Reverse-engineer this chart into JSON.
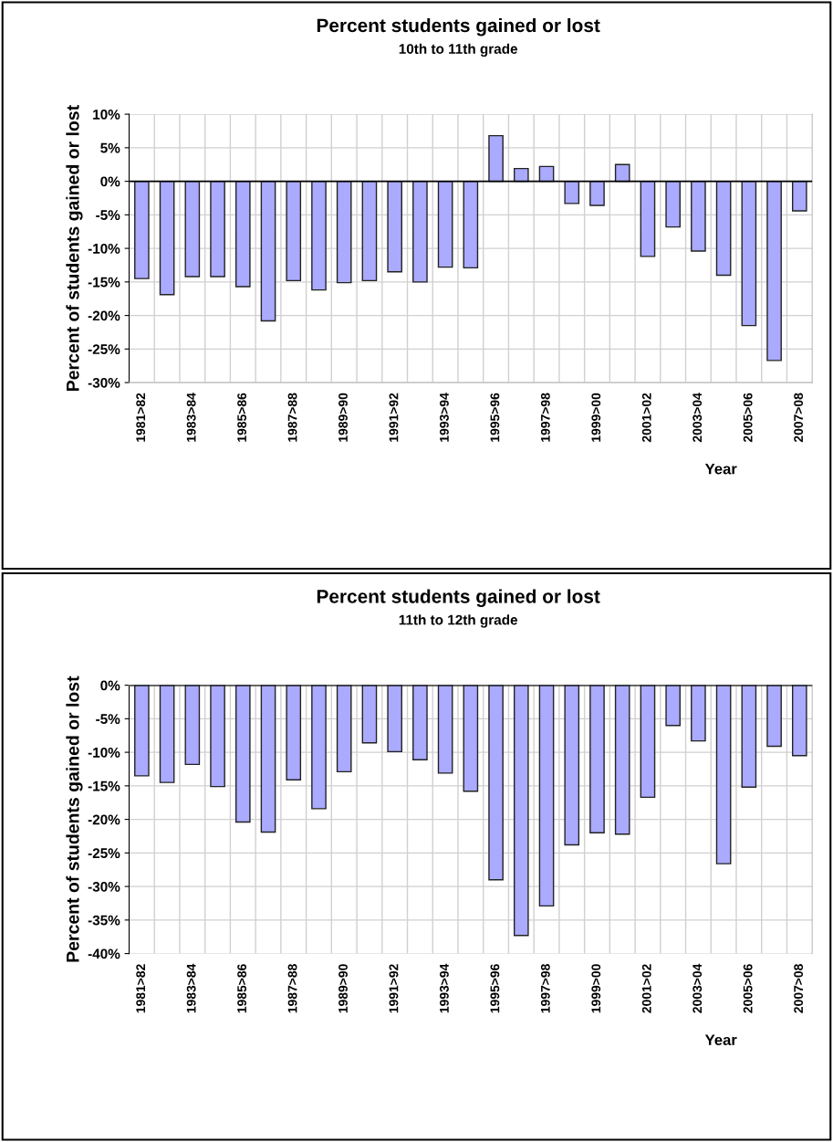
{
  "chart_data": [
    {
      "type": "bar",
      "title": "Percent students gained or lost",
      "subtitle": "10th to 11th grade",
      "xlabel": "Year",
      "ylabel": "Percent of students gained or lost",
      "categories": [
        "1981>82",
        null,
        "1983>84",
        null,
        "1985>86",
        null,
        "1987>88",
        null,
        "1989>90",
        null,
        "1991>92",
        null,
        "1993>94",
        null,
        "1995>96",
        null,
        "1997>98",
        null,
        "1999>00",
        null,
        "2001>02",
        null,
        "2003>04",
        null,
        "2005>06",
        null,
        "2007>08"
      ],
      "values": [
        -14.5,
        -16.9,
        -14.2,
        -14.2,
        -15.7,
        -20.8,
        -14.8,
        -16.2,
        -15.1,
        -14.8,
        -13.5,
        -15.0,
        -12.8,
        -12.9,
        6.8,
        1.9,
        2.2,
        -3.3,
        -3.6,
        2.5,
        -11.2,
        -6.8,
        -10.4,
        -14.0,
        -21.5,
        -26.7,
        -4.4
      ],
      "color": "#aaaaff",
      "ylim": [
        -30,
        10
      ],
      "yticks": [
        {
          "value": -30,
          "label": "-30%"
        },
        {
          "value": -25,
          "label": "-25%"
        },
        {
          "value": -20,
          "label": "-20%"
        },
        {
          "value": -15,
          "label": "-15%"
        },
        {
          "value": -10,
          "label": "-10%"
        },
        {
          "value": -5,
          "label": "-5%"
        },
        {
          "value": 0,
          "label": "0%"
        },
        {
          "value": 5,
          "label": "5%"
        },
        {
          "value": 10,
          "label": "10%"
        }
      ],
      "grid": true
    },
    {
      "type": "bar",
      "title": "Percent students gained or lost",
      "subtitle": "11th to 12th grade",
      "xlabel": "Year",
      "ylabel": "Percent of students gained or lost",
      "categories": [
        "1981>82",
        null,
        "1983>84",
        null,
        "1985>86",
        null,
        "1987>88",
        null,
        "1989>90",
        null,
        "1991>92",
        null,
        "1993>94",
        null,
        "1995>96",
        null,
        "1997>98",
        null,
        "1999>00",
        null,
        "2001>02",
        null,
        "2003>04",
        null,
        "2005>06",
        null,
        "2007>08"
      ],
      "values": [
        -13.5,
        -14.5,
        -11.8,
        -15.1,
        -20.4,
        -21.9,
        -14.1,
        -18.4,
        -12.9,
        -8.6,
        -9.9,
        -11.1,
        -13.1,
        -15.8,
        -29.0,
        -37.3,
        -32.9,
        -23.8,
        -22.0,
        -22.2,
        -16.7,
        -6.0,
        -8.3,
        -26.6,
        -15.2,
        -9.1,
        -10.5
      ],
      "color": "#aaaaff",
      "ylim": [
        -40,
        0
      ],
      "yticks": [
        {
          "value": -40,
          "label": "-40%"
        },
        {
          "value": -35,
          "label": "-35%"
        },
        {
          "value": -30,
          "label": "-30%"
        },
        {
          "value": -25,
          "label": "-25%"
        },
        {
          "value": -20,
          "label": "-20%"
        },
        {
          "value": -15,
          "label": "-15%"
        },
        {
          "value": -10,
          "label": "-10%"
        },
        {
          "value": -5,
          "label": "-5%"
        },
        {
          "value": 0,
          "label": "0%"
        }
      ],
      "grid": true
    }
  ]
}
